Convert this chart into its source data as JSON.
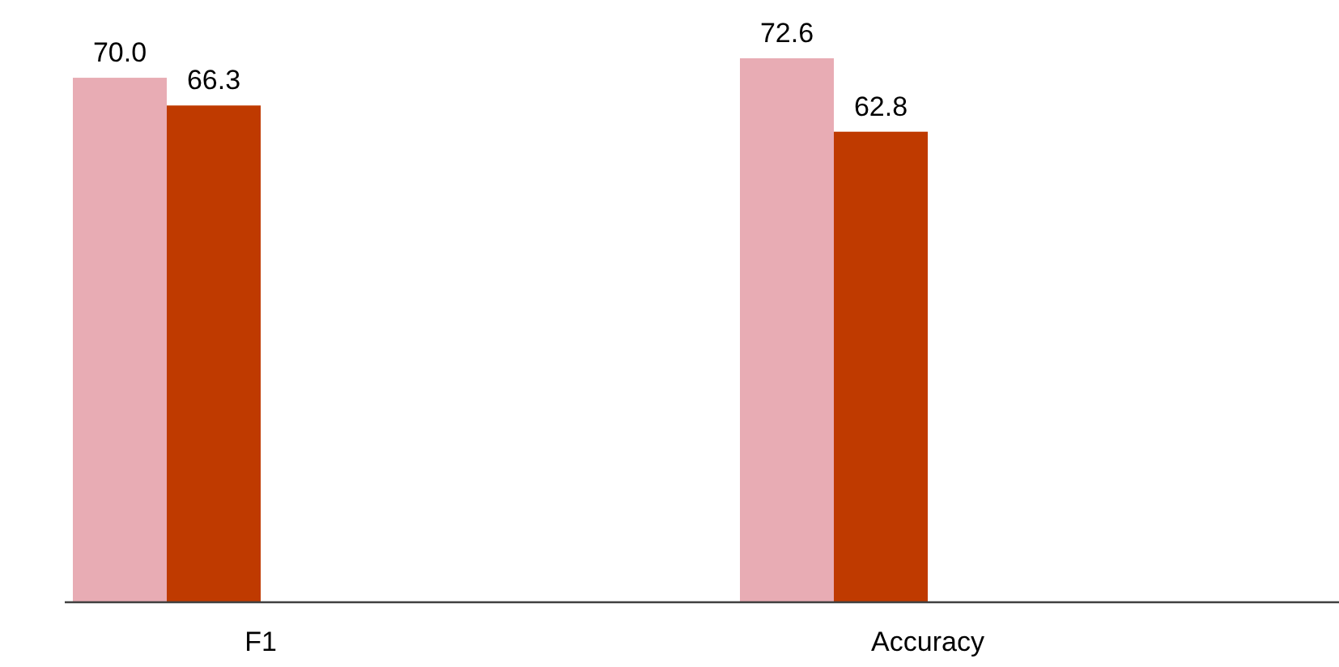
{
  "chart_data": {
    "type": "bar",
    "categories": [
      "F1",
      "Accuracy"
    ],
    "series": [
      {
        "color": "#e8acb4",
        "values": [
          70.0,
          72.6
        ],
        "value_labels": [
          "70.0",
          "72.6"
        ]
      },
      {
        "color": "#bf3a00",
        "values": [
          66.3,
          62.8
        ],
        "value_labels": [
          "66.3",
          "62.8"
        ]
      }
    ]
  }
}
